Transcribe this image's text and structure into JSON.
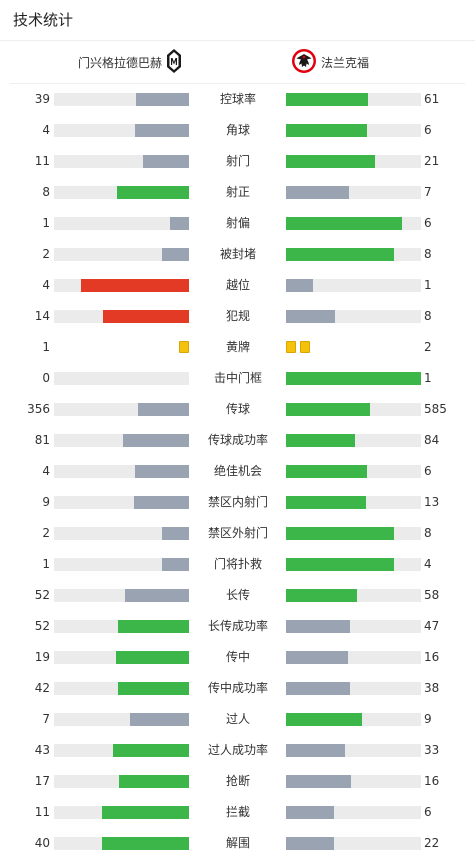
{
  "title": "技术统计",
  "teams": {
    "home": "门兴格拉德巴赫",
    "away": "法兰克福"
  },
  "colors": {
    "green": "#3cb648",
    "gray": "#9aa3b2",
    "red": "#e23a25",
    "track": "#ebebeb",
    "yellow": "#f4c20d"
  },
  "stats": [
    {
      "label": "控球率",
      "home": "39",
      "away": "61"
    },
    {
      "label": "角球",
      "home": "4",
      "away": "6"
    },
    {
      "label": "射门",
      "home": "11",
      "away": "21"
    },
    {
      "label": "射正",
      "home": "8",
      "away": "7"
    },
    {
      "label": "射偏",
      "home": "1",
      "away": "6"
    },
    {
      "label": "被封堵",
      "home": "2",
      "away": "8"
    },
    {
      "label": "越位",
      "home": "4",
      "away": "1"
    },
    {
      "label": "犯规",
      "home": "14",
      "away": "8"
    },
    {
      "label": "黄牌",
      "home": "1",
      "away": "2"
    },
    {
      "label": "击中门框",
      "home": "0",
      "away": "1"
    },
    {
      "label": "传球",
      "home": "356",
      "away": "585"
    },
    {
      "label": "传球成功率",
      "home": "81",
      "away": "84"
    },
    {
      "label": "绝佳机会",
      "home": "4",
      "away": "6"
    },
    {
      "label": "禁区内射门",
      "home": "9",
      "away": "13"
    },
    {
      "label": "禁区外射门",
      "home": "2",
      "away": "8"
    },
    {
      "label": "门将扑救",
      "home": "1",
      "away": "4"
    },
    {
      "label": "长传",
      "home": "52",
      "away": "58"
    },
    {
      "label": "长传成功率",
      "home": "52",
      "away": "47"
    },
    {
      "label": "传中",
      "home": "19",
      "away": "16"
    },
    {
      "label": "传中成功率",
      "home": "42",
      "away": "38"
    },
    {
      "label": "过人",
      "home": "7",
      "away": "9"
    },
    {
      "label": "过人成功率",
      "home": "43",
      "away": "33"
    },
    {
      "label": "抢断",
      "home": "17",
      "away": "16"
    },
    {
      "label": "拦截",
      "home": "11",
      "away": "6"
    },
    {
      "label": "解围",
      "home": "40",
      "away": "22"
    }
  ]
}
